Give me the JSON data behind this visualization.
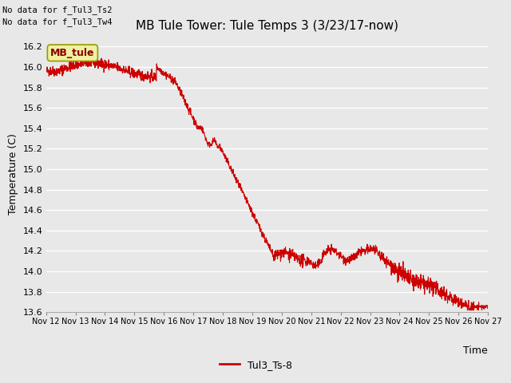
{
  "title": "MB Tule Tower: Tule Temps 3 (3/23/17-now)",
  "xlabel": "Time",
  "ylabel": "Temperature (C)",
  "ylim": [
    13.6,
    16.3
  ],
  "yticks": [
    13.6,
    13.8,
    14.0,
    14.2,
    14.4,
    14.6,
    14.8,
    15.0,
    15.2,
    15.4,
    15.6,
    15.8,
    16.0,
    16.2
  ],
  "xtick_labels": [
    "Nov 12",
    "Nov 13",
    "Nov 14",
    "Nov 15",
    "Nov 16",
    "Nov 17",
    "Nov 18",
    "Nov 19",
    "Nov 20",
    "Nov 21",
    "Nov 22",
    "Nov 23",
    "Nov 24",
    "Nov 25",
    "Nov 26",
    "Nov 27"
  ],
  "line_color": "#cc0000",
  "line_label": "Tul3_Ts-8",
  "legend_label": "MB_tule",
  "no_data_text1": "No data for f_Tul3_Ts2",
  "no_data_text2": "No data for f_Tul3_Tw4",
  "background_color": "#e8e8e8",
  "plot_bg_color": "#e8e8e8",
  "grid_color": "#ffffff",
  "title_fontsize": 11,
  "axis_fontsize": 9,
  "tick_fontsize": 8,
  "legend_fontsize": 9
}
